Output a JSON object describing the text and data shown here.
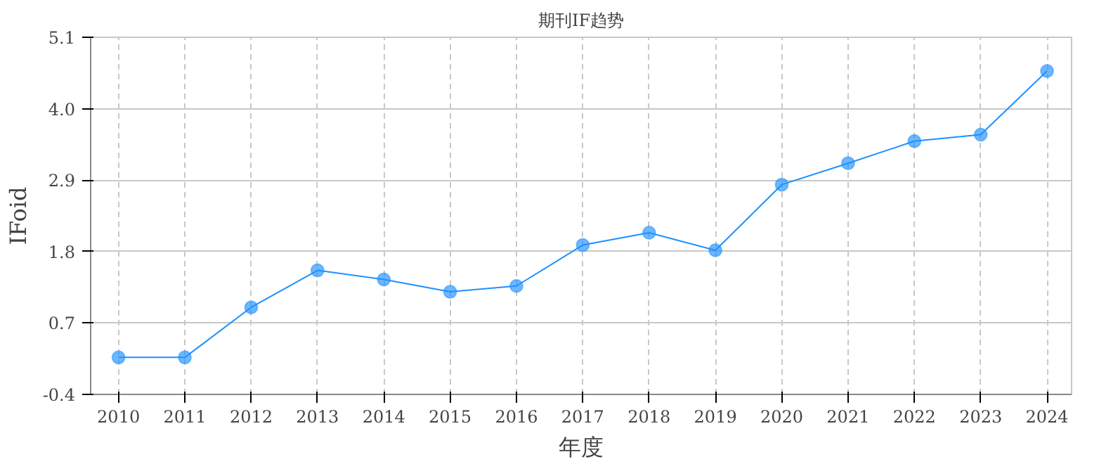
{
  "chart_data": {
    "type": "line",
    "title": "期刊IF趋势",
    "xlabel": "年度",
    "ylabel": "IFoid",
    "categories": [
      "2010",
      "2011",
      "2012",
      "2013",
      "2014",
      "2015",
      "2016",
      "2017",
      "2018",
      "2019",
      "2020",
      "2021",
      "2022",
      "2023",
      "2024"
    ],
    "series": [
      {
        "color": "#1e90ff",
        "values": [
          0.17,
          0.17,
          0.94,
          1.51,
          1.37,
          1.18,
          1.27,
          1.9,
          2.09,
          1.82,
          2.83,
          3.16,
          3.5,
          3.6,
          4.58
        ]
      }
    ],
    "ylim": [
      -0.4,
      5.1
    ],
    "yticks": [
      {
        "value": -0.4,
        "label": "-0.4"
      },
      {
        "value": 0.7,
        "label": "0.7"
      },
      {
        "value": 1.8,
        "label": "1.8"
      },
      {
        "value": 2.9,
        "label": "2.9"
      },
      {
        "value": 4.0,
        "label": "4.0"
      },
      {
        "value": 5.1,
        "label": "5.1"
      }
    ],
    "grid": true,
    "marker": "circle",
    "line_style": "solid"
  }
}
